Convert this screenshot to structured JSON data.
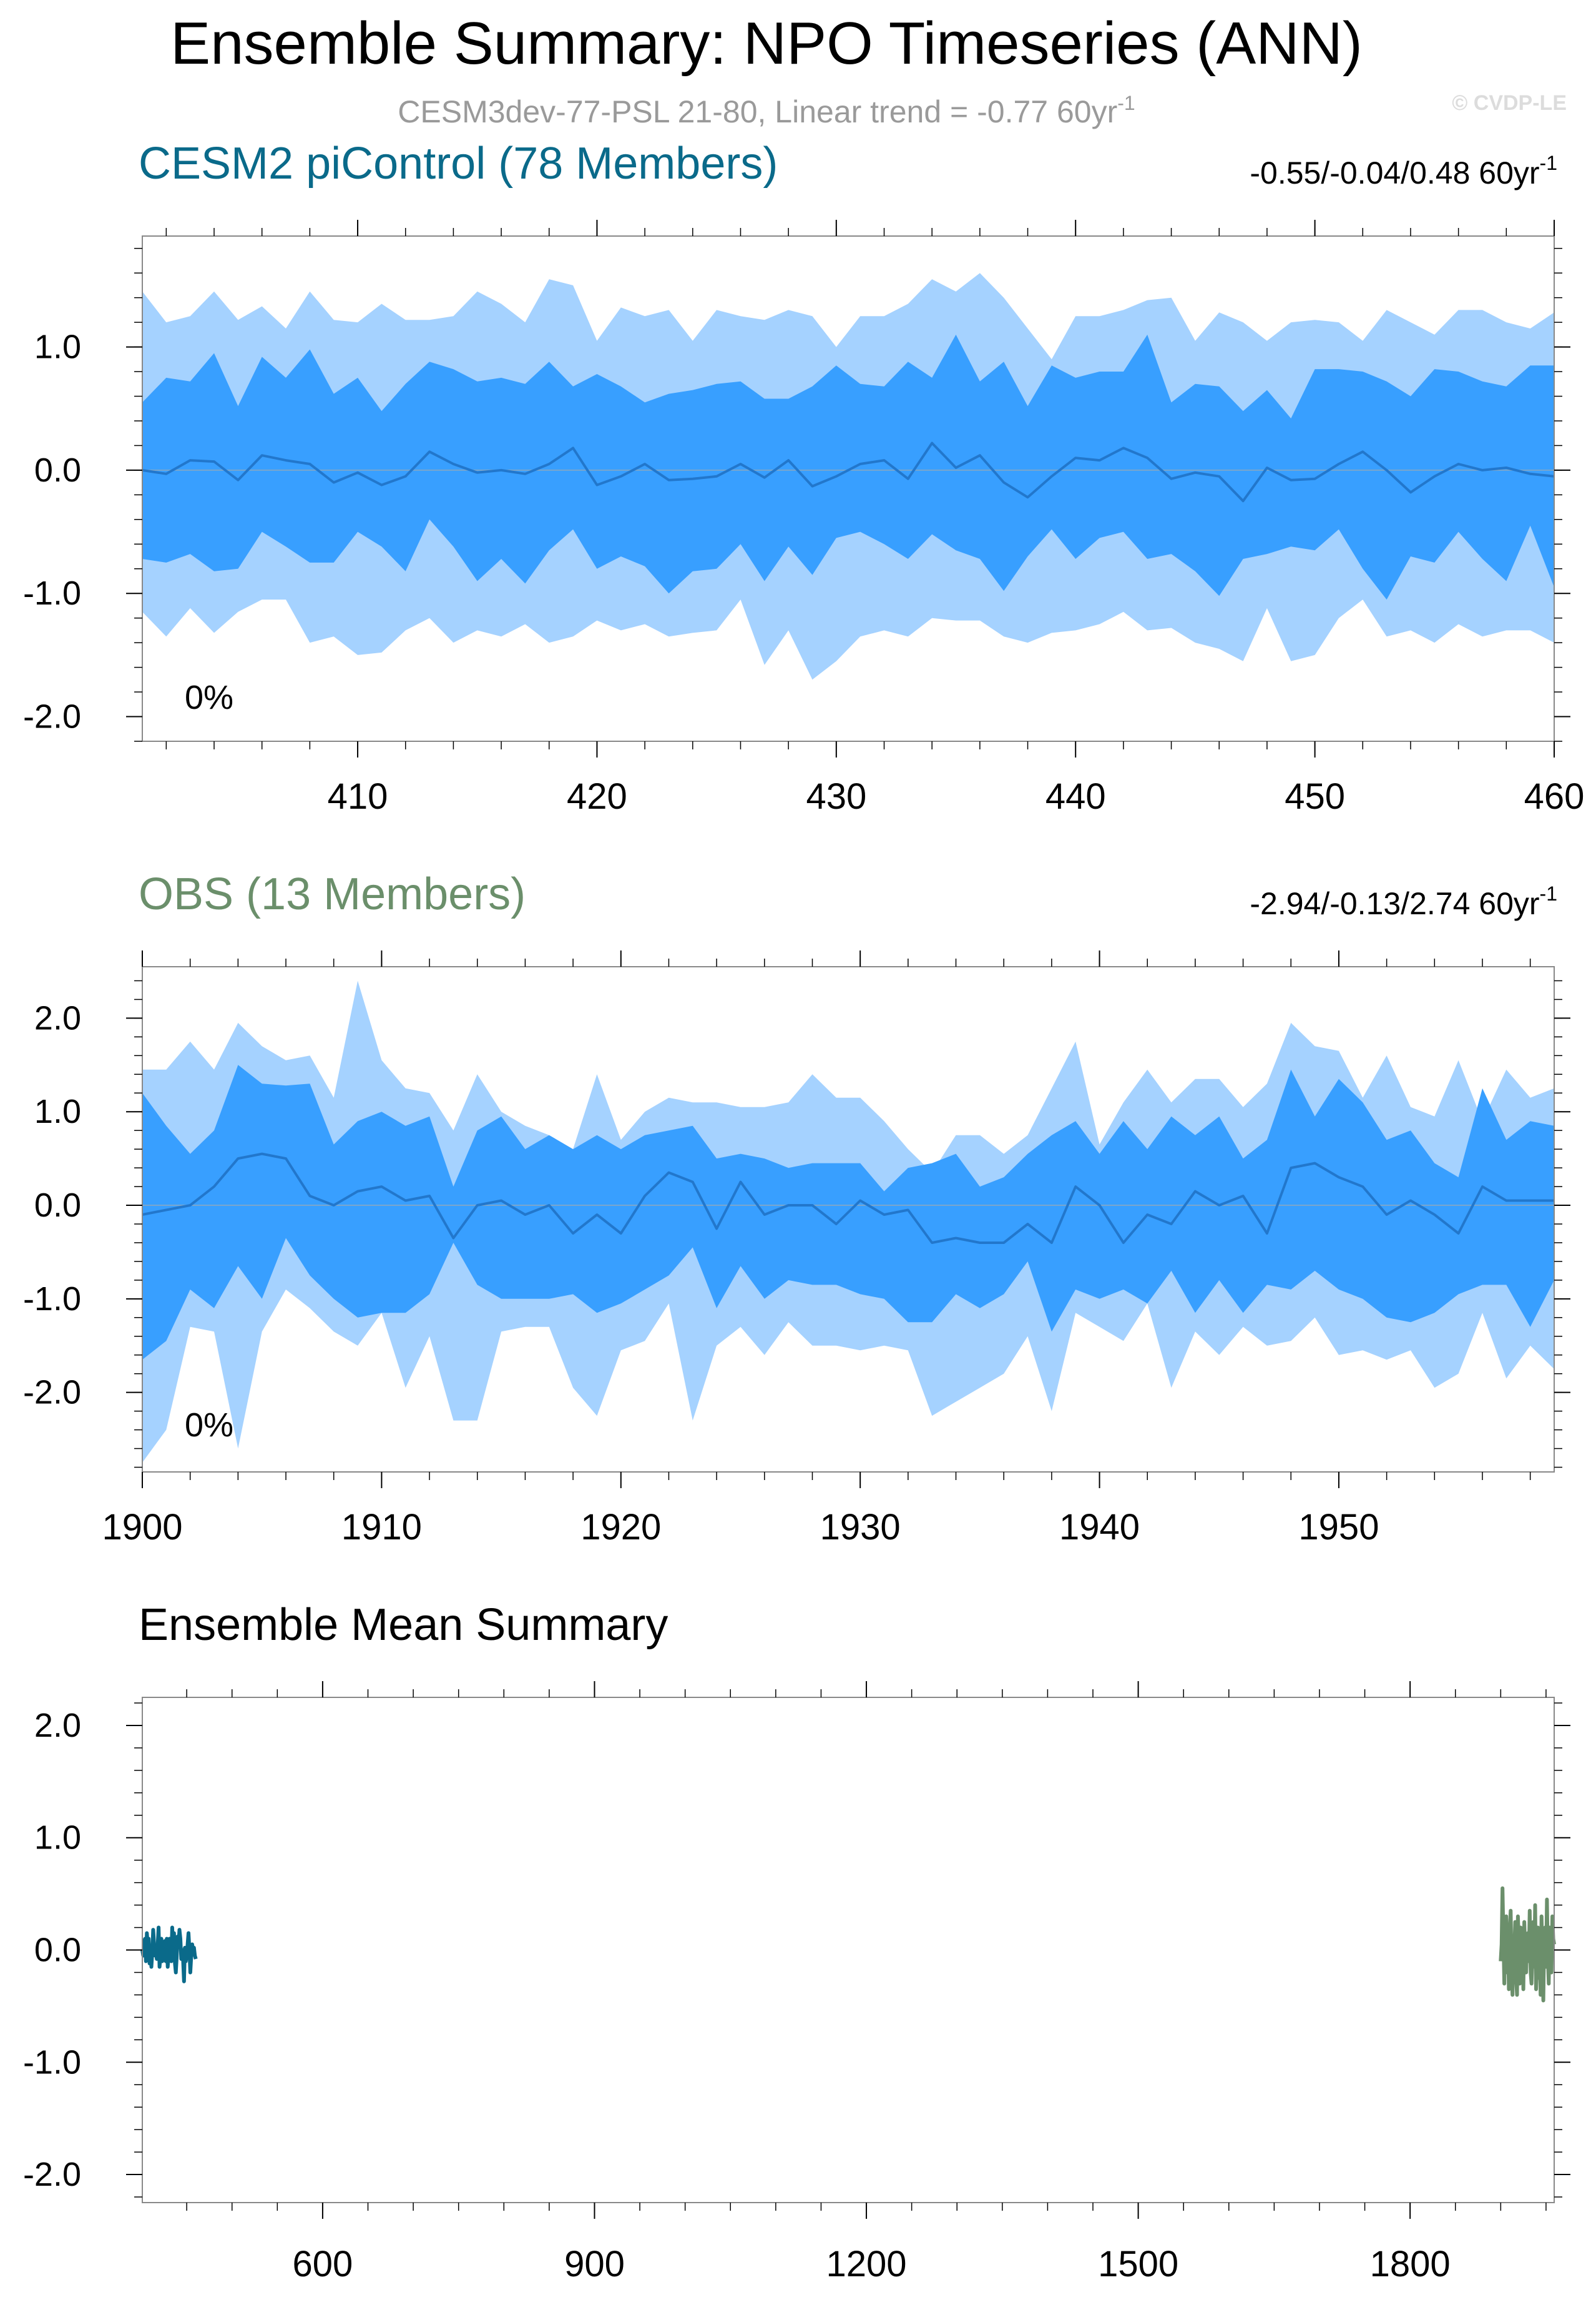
{
  "page": {
    "title": "Ensemble Summary: NPO Timeseries (ANN)",
    "subtitle_main": "CESM3dev-77-PSL 21-80, Linear trend = -0.77 60yr",
    "subtitle_sup": "-1",
    "watermark": "© CVDP-LE"
  },
  "colors": {
    "band_outer": "#a5d2ff",
    "band_inner": "#389fff",
    "median_line": "#2277cc",
    "cesm_title": "#0a6a8a",
    "obs_title": "#6b8f6b",
    "axis": "#000000",
    "subtitle": "#9a9a9a"
  },
  "chart_data": [
    {
      "type": "area",
      "title": "CESM2 piControl (78 Members)",
      "trend_text": "-0.55/-0.04/0.48 60yr",
      "trend_sup": "-1",
      "percent_label": "0%",
      "xlim": [
        401,
        460
      ],
      "ylim": [
        -2.2,
        1.9
      ],
      "yticks": [
        1.0,
        0.0,
        -1.0,
        -2.0
      ],
      "ytick_labels": [
        "1.0",
        "0.0",
        "-1.0",
        "-2.0"
      ],
      "xticks": [
        410,
        420,
        430,
        440,
        450,
        460
      ],
      "xtick_labels": [
        "410",
        "420",
        "430",
        "440",
        "450",
        "460"
      ],
      "x_start": 401,
      "series": [
        {
          "name": "max",
          "values": [
            1.45,
            1.2,
            1.25,
            1.45,
            1.22,
            1.33,
            1.15,
            1.45,
            1.22,
            1.2,
            1.35,
            1.22,
            1.22,
            1.25,
            1.45,
            1.35,
            1.2,
            1.55,
            1.5,
            1.05,
            1.32,
            1.25,
            1.3,
            1.05,
            1.3,
            1.25,
            1.22,
            1.3,
            1.25,
            1.0,
            1.25,
            1.25,
            1.35,
            1.55,
            1.45,
            1.6,
            1.4,
            1.15,
            0.9,
            1.25,
            1.25,
            1.3,
            1.38,
            1.4,
            1.05,
            1.28,
            1.2,
            1.05,
            1.2,
            1.22,
            1.2,
            1.05,
            1.3,
            1.2,
            1.1,
            1.3,
            1.3,
            1.2,
            1.15,
            1.28
          ]
        },
        {
          "name": "p84",
          "values": [
            0.55,
            0.75,
            0.72,
            0.95,
            0.52,
            0.92,
            0.75,
            0.98,
            0.62,
            0.75,
            0.48,
            0.7,
            0.88,
            0.82,
            0.72,
            0.75,
            0.7,
            0.88,
            0.68,
            0.78,
            0.68,
            0.55,
            0.62,
            0.65,
            0.7,
            0.72,
            0.58,
            0.58,
            0.68,
            0.85,
            0.7,
            0.68,
            0.88,
            0.75,
            1.1,
            0.72,
            0.88,
            0.52,
            0.85,
            0.75,
            0.8,
            0.8,
            1.1,
            0.55,
            0.7,
            0.68,
            0.48,
            0.65,
            0.42,
            0.82,
            0.82,
            0.8,
            0.72,
            0.6,
            0.82,
            0.8,
            0.72,
            0.68,
            0.85,
            0.85
          ]
        },
        {
          "name": "median",
          "values": [
            0.0,
            -0.03,
            0.08,
            0.07,
            -0.08,
            0.12,
            0.08,
            0.05,
            -0.1,
            -0.02,
            -0.12,
            -0.05,
            0.15,
            0.05,
            -0.02,
            0.0,
            -0.03,
            0.05,
            0.18,
            -0.12,
            -0.05,
            0.05,
            -0.08,
            -0.07,
            -0.05,
            0.05,
            -0.06,
            0.08,
            -0.13,
            -0.05,
            0.05,
            0.08,
            -0.07,
            0.22,
            0.02,
            0.12,
            -0.1,
            -0.22,
            -0.05,
            0.1,
            0.08,
            0.18,
            0.1,
            -0.07,
            -0.02,
            -0.05,
            -0.25,
            0.02,
            -0.08,
            -0.07,
            0.05,
            0.15,
            0.0,
            -0.18,
            -0.05,
            0.05,
            0.0,
            0.02,
            -0.03,
            -0.05
          ]
        },
        {
          "name": "p16",
          "values": [
            -0.72,
            -0.75,
            -0.68,
            -0.82,
            -0.8,
            -0.5,
            -0.62,
            -0.75,
            -0.75,
            -0.5,
            -0.62,
            -0.82,
            -0.4,
            -0.62,
            -0.9,
            -0.72,
            -0.92,
            -0.65,
            -0.48,
            -0.8,
            -0.7,
            -0.78,
            -1.0,
            -0.82,
            -0.8,
            -0.6,
            -0.9,
            -0.62,
            -0.85,
            -0.55,
            -0.5,
            -0.6,
            -0.72,
            -0.52,
            -0.65,
            -0.72,
            -0.98,
            -0.7,
            -0.48,
            -0.72,
            -0.55,
            -0.5,
            -0.72,
            -0.68,
            -0.82,
            -1.02,
            -0.72,
            -0.68,
            -0.62,
            -0.65,
            -0.48,
            -0.8,
            -1.05,
            -0.7,
            -0.75,
            -0.5,
            -0.72,
            -0.9,
            -0.45,
            -0.95
          ]
        },
        {
          "name": "min",
          "values": [
            -1.15,
            -1.35,
            -1.12,
            -1.32,
            -1.15,
            -1.05,
            -1.05,
            -1.4,
            -1.35,
            -1.5,
            -1.48,
            -1.3,
            -1.2,
            -1.4,
            -1.3,
            -1.35,
            -1.25,
            -1.4,
            -1.35,
            -1.22,
            -1.3,
            -1.25,
            -1.35,
            -1.32,
            -1.3,
            -1.05,
            -1.58,
            -1.3,
            -1.7,
            -1.55,
            -1.35,
            -1.3,
            -1.35,
            -1.2,
            -1.22,
            -1.22,
            -1.35,
            -1.4,
            -1.32,
            -1.3,
            -1.25,
            -1.15,
            -1.3,
            -1.28,
            -1.4,
            -1.45,
            -1.55,
            -1.12,
            -1.55,
            -1.5,
            -1.2,
            -1.05,
            -1.35,
            -1.3,
            -1.4,
            -1.25,
            -1.35,
            -1.3,
            -1.3,
            -1.4
          ]
        }
      ]
    },
    {
      "type": "area",
      "title": "OBS (13 Members)",
      "trend_text": "-2.94/-0.13/2.74 60yr",
      "trend_sup": "-1",
      "percent_label": "0%",
      "xlim": [
        1900,
        1959
      ],
      "ylim": [
        -2.85,
        2.55
      ],
      "yticks": [
        2.0,
        1.0,
        0.0,
        -1.0,
        -2.0
      ],
      "ytick_labels": [
        "2.0",
        "1.0",
        "0.0",
        "-1.0",
        "-2.0"
      ],
      "xticks": [
        1900,
        1910,
        1920,
        1930,
        1940,
        1950
      ],
      "xtick_labels": [
        "1900",
        "1910",
        "1920",
        "1930",
        "1940",
        "1950"
      ],
      "x_start": 1900,
      "series": [
        {
          "name": "max",
          "values": [
            1.45,
            1.45,
            1.75,
            1.45,
            1.95,
            1.7,
            1.55,
            1.6,
            1.15,
            2.4,
            1.55,
            1.25,
            1.2,
            0.8,
            1.4,
            1.0,
            0.85,
            0.75,
            0.6,
            1.4,
            0.7,
            1.0,
            1.15,
            1.1,
            1.1,
            1.05,
            1.05,
            1.1,
            1.4,
            1.15,
            1.15,
            0.9,
            0.6,
            0.35,
            0.75,
            0.75,
            0.55,
            0.75,
            1.25,
            1.75,
            0.65,
            1.1,
            1.45,
            1.1,
            1.35,
            1.35,
            1.05,
            1.3,
            1.95,
            1.7,
            1.65,
            1.15,
            1.6,
            1.05,
            0.95,
            1.55,
            0.9,
            1.45,
            1.15,
            1.25
          ]
        },
        {
          "name": "p84",
          "values": [
            1.2,
            0.85,
            0.55,
            0.8,
            1.5,
            1.3,
            1.28,
            1.3,
            0.65,
            0.9,
            1.0,
            0.85,
            0.95,
            0.2,
            0.8,
            0.95,
            0.6,
            0.75,
            0.6,
            0.75,
            0.6,
            0.75,
            0.8,
            0.85,
            0.5,
            0.55,
            0.5,
            0.4,
            0.45,
            0.45,
            0.45,
            0.15,
            0.4,
            0.45,
            0.55,
            0.2,
            0.3,
            0.55,
            0.75,
            0.9,
            0.55,
            0.9,
            0.6,
            0.95,
            0.75,
            0.95,
            0.5,
            0.7,
            1.45,
            0.95,
            1.35,
            1.1,
            0.7,
            0.8,
            0.45,
            0.3,
            1.25,
            0.7,
            0.9,
            0.85
          ]
        },
        {
          "name": "median",
          "values": [
            -0.1,
            -0.05,
            0.0,
            0.2,
            0.5,
            0.55,
            0.5,
            0.1,
            0.0,
            0.15,
            0.2,
            0.05,
            0.1,
            -0.35,
            0.0,
            0.05,
            -0.1,
            0.0,
            -0.3,
            -0.1,
            -0.3,
            0.1,
            0.35,
            0.25,
            -0.25,
            0.25,
            -0.1,
            0.0,
            0.0,
            -0.2,
            0.05,
            -0.1,
            -0.05,
            -0.4,
            -0.35,
            -0.4,
            -0.4,
            -0.2,
            -0.4,
            0.2,
            0.0,
            -0.4,
            -0.1,
            -0.2,
            0.15,
            0.0,
            0.1,
            -0.3,
            0.4,
            0.45,
            0.3,
            0.2,
            -0.1,
            0.05,
            -0.1,
            -0.3,
            0.2,
            0.05,
            0.05,
            0.05
          ]
        },
        {
          "name": "p16",
          "values": [
            -1.65,
            -1.45,
            -0.9,
            -1.1,
            -0.65,
            -1.0,
            -0.35,
            -0.75,
            -1.0,
            -1.2,
            -1.15,
            -1.15,
            -0.95,
            -0.4,
            -0.85,
            -1.0,
            -1.0,
            -1.0,
            -0.95,
            -1.15,
            -1.05,
            -0.9,
            -0.75,
            -0.45,
            -1.1,
            -0.65,
            -1.0,
            -0.8,
            -0.85,
            -0.85,
            -0.95,
            -1.0,
            -1.25,
            -1.25,
            -0.95,
            -1.1,
            -0.95,
            -0.6,
            -1.35,
            -0.9,
            -1.0,
            -0.9,
            -1.05,
            -0.7,
            -1.15,
            -0.8,
            -1.15,
            -0.85,
            -0.9,
            -0.7,
            -0.9,
            -1.0,
            -1.2,
            -1.25,
            -1.15,
            -0.95,
            -0.85,
            -0.85,
            -1.3,
            -0.8
          ]
        },
        {
          "name": "min",
          "values": [
            -2.75,
            -2.4,
            -1.3,
            -1.35,
            -2.6,
            -1.35,
            -0.9,
            -1.1,
            -1.35,
            -1.5,
            -1.15,
            -1.95,
            -1.4,
            -2.3,
            -2.3,
            -1.35,
            -1.3,
            -1.3,
            -1.95,
            -2.25,
            -1.55,
            -1.45,
            -1.05,
            -2.3,
            -1.5,
            -1.3,
            -1.6,
            -1.25,
            -1.5,
            -1.5,
            -1.55,
            -1.5,
            -1.55,
            -2.25,
            -2.1,
            -1.95,
            -1.8,
            -1.4,
            -2.2,
            -1.15,
            -1.3,
            -1.45,
            -1.05,
            -1.95,
            -1.35,
            -1.6,
            -1.3,
            -1.5,
            -1.45,
            -1.2,
            -1.6,
            -1.55,
            -1.65,
            -1.55,
            -1.95,
            -1.8,
            -1.15,
            -1.85,
            -1.5,
            -1.75
          ]
        }
      ]
    },
    {
      "type": "line",
      "title": "Ensemble Mean Summary",
      "xlim": [
        401,
        1959
      ],
      "ylim": [
        -2.25,
        2.25
      ],
      "yticks": [
        2.0,
        1.0,
        0.0,
        -1.0,
        -2.0
      ],
      "ytick_labels": [
        "2.0",
        "1.0",
        "0.0",
        "-1.0",
        "-2.0"
      ],
      "xticks": [
        600,
        900,
        1200,
        1500,
        1800
      ],
      "xtick_labels": [
        "600",
        "900",
        "1200",
        "1500",
        "1800"
      ],
      "series": [
        {
          "name": "CESM2 piControl ensemble mean",
          "color": "#0a6a8a",
          "x_start": 401,
          "values": [
            0.0,
            -0.05,
            0.08,
            0.1,
            -0.1,
            0.15,
            0.05,
            0.1,
            -0.12,
            0.02,
            -0.15,
            -0.02,
            0.18,
            0.05,
            -0.05,
            0.0,
            -0.08,
            0.05,
            0.2,
            -0.15,
            -0.05,
            0.1,
            -0.1,
            -0.08,
            -0.02,
            0.08,
            -0.1,
            0.1,
            -0.15,
            -0.05,
            0.1,
            0.05,
            -0.1,
            0.2,
            0.0,
            0.15,
            -0.12,
            -0.2,
            -0.05,
            0.12,
            0.05,
            0.18,
            0.1,
            -0.08,
            0.0,
            -0.08,
            -0.28,
            0.02,
            -0.1,
            -0.05,
            0.05,
            0.15,
            0.0,
            -0.2,
            -0.05,
            0.05,
            0.0,
            0.02,
            -0.05,
            -0.08
          ]
        },
        {
          "name": "OBS ensemble mean",
          "color": "#6b8f6b",
          "x_start": 1900,
          "values": [
            -0.1,
            0.05,
            0.55,
            0.1,
            -0.3,
            0.25,
            0.3,
            -0.2,
            0.15,
            -0.35,
            0.2,
            0.35,
            -0.15,
            -0.4,
            0.1,
            0.0,
            0.25,
            -0.25,
            -0.4,
            0.3,
            0.05,
            -0.3,
            0.2,
            -0.15,
            0.1,
            -0.35,
            0.25,
            0.0,
            -0.2,
            0.05,
            0.15,
            -0.1,
            0.35,
            -0.2,
            -0.3,
            0.0,
            0.25,
            -0.15,
            0.4,
            -0.35,
            -0.1,
            0.2,
            -0.25,
            0.05,
            -0.4,
            0.3,
            -0.05,
            -0.45,
            0.1,
            0.2,
            -0.15,
            0.45,
            -0.05,
            -0.3,
            0.2,
            0.05,
            -0.2,
            0.3,
            0.1,
            0.05
          ]
        }
      ]
    }
  ]
}
